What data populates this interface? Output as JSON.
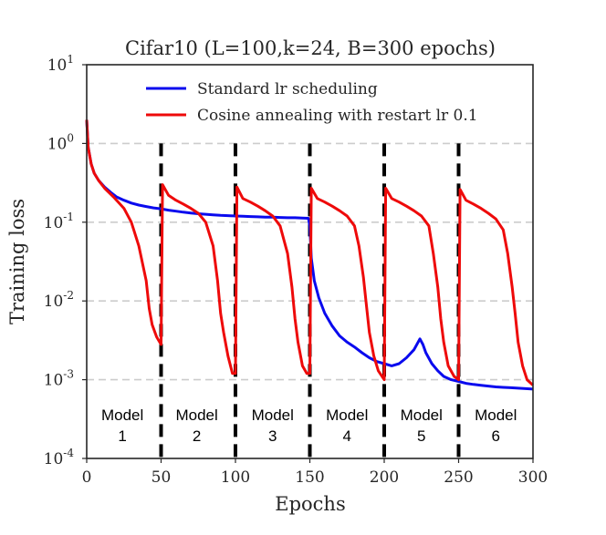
{
  "chart_data": {
    "type": "line",
    "title": "Cifar10 (L=100,k=24, B=300 epochs)",
    "xlabel": "Epochs",
    "ylabel": "Training loss",
    "xlim": [
      0,
      300
    ],
    "ylim": [
      0.0001,
      10
    ],
    "yscale": "log",
    "x_ticks": [
      "0",
      "50",
      "100",
      "150",
      "200",
      "250",
      "300"
    ],
    "y_ticks": [
      {
        "base": "10",
        "exp": "1"
      },
      {
        "base": "10",
        "exp": "0"
      },
      {
        "base": "10",
        "exp": "-1"
      },
      {
        "base": "10",
        "exp": "-2"
      },
      {
        "base": "10",
        "exp": "-3"
      },
      {
        "base": "10",
        "exp": "-4"
      }
    ],
    "grid": "horizontal dashed",
    "legend_position": "top-center",
    "restart_markers": [
      50,
      100,
      150,
      200,
      250
    ],
    "model_labels": [
      {
        "line1": "Model",
        "line2": "1",
        "x": 24
      },
      {
        "line1": "Model",
        "line2": "2",
        "x": 74
      },
      {
        "line1": "Model",
        "line2": "3",
        "x": 125
      },
      {
        "line1": "Model",
        "line2": "4",
        "x": 175
      },
      {
        "line1": "Model",
        "line2": "5",
        "x": 225
      },
      {
        "line1": "Model",
        "line2": "6",
        "x": 275
      }
    ],
    "series": [
      {
        "name": "Standard lr scheduling",
        "color": "#0a0aee",
        "points": [
          [
            0,
            2.0
          ],
          [
            1,
            0.9
          ],
          [
            3,
            0.55
          ],
          [
            5,
            0.42
          ],
          [
            8,
            0.34
          ],
          [
            12,
            0.28
          ],
          [
            16,
            0.24
          ],
          [
            20,
            0.21
          ],
          [
            25,
            0.19
          ],
          [
            30,
            0.175
          ],
          [
            35,
            0.165
          ],
          [
            40,
            0.158
          ],
          [
            45,
            0.152
          ],
          [
            50,
            0.148
          ],
          [
            55,
            0.142
          ],
          [
            60,
            0.138
          ],
          [
            65,
            0.134
          ],
          [
            70,
            0.131
          ],
          [
            75,
            0.128
          ],
          [
            80,
            0.126
          ],
          [
            85,
            0.124
          ],
          [
            90,
            0.122
          ],
          [
            95,
            0.121
          ],
          [
            100,
            0.12
          ],
          [
            105,
            0.119
          ],
          [
            110,
            0.118
          ],
          [
            115,
            0.117
          ],
          [
            120,
            0.116
          ],
          [
            125,
            0.116
          ],
          [
            130,
            0.115
          ],
          [
            135,
            0.114
          ],
          [
            140,
            0.114
          ],
          [
            145,
            0.113
          ],
          [
            149,
            0.112
          ],
          [
            150,
            0.09
          ],
          [
            151,
            0.035
          ],
          [
            153,
            0.018
          ],
          [
            156,
            0.011
          ],
          [
            160,
            0.007
          ],
          [
            165,
            0.0048
          ],
          [
            170,
            0.0036
          ],
          [
            175,
            0.003
          ],
          [
            180,
            0.0026
          ],
          [
            185,
            0.0022
          ],
          [
            190,
            0.0019
          ],
          [
            195,
            0.0017
          ],
          [
            200,
            0.0016
          ],
          [
            205,
            0.0015
          ],
          [
            210,
            0.0016
          ],
          [
            215,
            0.0019
          ],
          [
            220,
            0.0024
          ],
          [
            224,
            0.0033
          ],
          [
            226,
            0.0028
          ],
          [
            228,
            0.0022
          ],
          [
            232,
            0.0016
          ],
          [
            236,
            0.0013
          ],
          [
            240,
            0.0011
          ],
          [
            245,
            0.001
          ],
          [
            250,
            0.00095
          ],
          [
            255,
            0.0009
          ],
          [
            260,
            0.00087
          ],
          [
            265,
            0.00085
          ],
          [
            270,
            0.00083
          ],
          [
            275,
            0.00081
          ],
          [
            280,
            0.0008
          ],
          [
            285,
            0.00079
          ],
          [
            290,
            0.00078
          ],
          [
            295,
            0.00077
          ],
          [
            300,
            0.00076
          ]
        ]
      },
      {
        "name": "Cosine annealing with restart lr 0.1",
        "color": "#ee0a0a",
        "points": [
          [
            0,
            2.0
          ],
          [
            1,
            0.9
          ],
          [
            3,
            0.55
          ],
          [
            5,
            0.42
          ],
          [
            8,
            0.34
          ],
          [
            12,
            0.27
          ],
          [
            18,
            0.21
          ],
          [
            25,
            0.15
          ],
          [
            30,
            0.1
          ],
          [
            35,
            0.05
          ],
          [
            40,
            0.018
          ],
          [
            42,
            0.008
          ],
          [
            44,
            0.005
          ],
          [
            47,
            0.0035
          ],
          [
            50,
            0.0028
          ],
          [
            51,
            0.3
          ],
          [
            55,
            0.22
          ],
          [
            60,
            0.19
          ],
          [
            65,
            0.17
          ],
          [
            70,
            0.15
          ],
          [
            75,
            0.13
          ],
          [
            80,
            0.1
          ],
          [
            85,
            0.05
          ],
          [
            88,
            0.018
          ],
          [
            90,
            0.007
          ],
          [
            92,
            0.004
          ],
          [
            95,
            0.002
          ],
          [
            98,
            0.0012
          ],
          [
            100,
            0.0012
          ],
          [
            101,
            0.28
          ],
          [
            105,
            0.2
          ],
          [
            110,
            0.18
          ],
          [
            115,
            0.16
          ],
          [
            120,
            0.14
          ],
          [
            125,
            0.12
          ],
          [
            130,
            0.09
          ],
          [
            135,
            0.04
          ],
          [
            138,
            0.015
          ],
          [
            140,
            0.006
          ],
          [
            142,
            0.003
          ],
          [
            145,
            0.0015
          ],
          [
            148,
            0.0012
          ],
          [
            150,
            0.0012
          ],
          [
            151,
            0.27
          ],
          [
            155,
            0.2
          ],
          [
            160,
            0.18
          ],
          [
            165,
            0.16
          ],
          [
            170,
            0.14
          ],
          [
            175,
            0.12
          ],
          [
            180,
            0.09
          ],
          [
            183,
            0.05
          ],
          [
            186,
            0.02
          ],
          [
            188,
            0.009
          ],
          [
            190,
            0.004
          ],
          [
            193,
            0.002
          ],
          [
            196,
            0.0013
          ],
          [
            200,
            0.001
          ],
          [
            201,
            0.27
          ],
          [
            205,
            0.2
          ],
          [
            210,
            0.18
          ],
          [
            215,
            0.16
          ],
          [
            220,
            0.14
          ],
          [
            225,
            0.12
          ],
          [
            230,
            0.09
          ],
          [
            233,
            0.04
          ],
          [
            236,
            0.015
          ],
          [
            238,
            0.006
          ],
          [
            240,
            0.003
          ],
          [
            243,
            0.0015
          ],
          [
            247,
            0.0011
          ],
          [
            250,
            0.001
          ],
          [
            251,
            0.26
          ],
          [
            255,
            0.19
          ],
          [
            260,
            0.17
          ],
          [
            265,
            0.15
          ],
          [
            270,
            0.13
          ],
          [
            275,
            0.11
          ],
          [
            280,
            0.08
          ],
          [
            283,
            0.04
          ],
          [
            286,
            0.015
          ],
          [
            288,
            0.007
          ],
          [
            290,
            0.003
          ],
          [
            293,
            0.0015
          ],
          [
            296,
            0.001
          ],
          [
            300,
            0.00085
          ]
        ]
      }
    ]
  }
}
